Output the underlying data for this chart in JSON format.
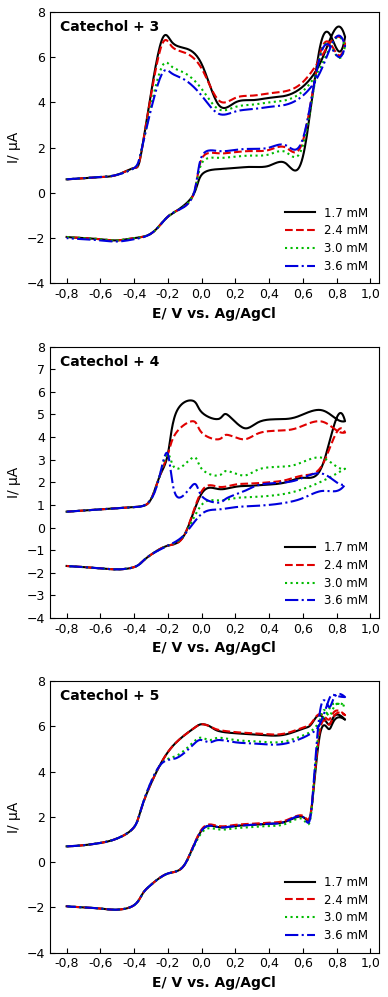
{
  "panels": [
    {
      "title": "Catechol + 3",
      "ylim": [
        -4,
        8
      ],
      "yticks": [
        -4,
        -2,
        0,
        2,
        4,
        6,
        8
      ],
      "curves": {
        "black": {
          "peak1": 6.7,
          "peak2": 7.1,
          "valley": 4.2,
          "ret_peak": 1.0,
          "base": 0.6,
          "trough": -2.1
        },
        "red": {
          "peak1": 6.5,
          "peak2": 6.8,
          "valley": 4.4,
          "ret_peak": 1.7,
          "base": 0.6,
          "trough": -2.1
        },
        "green": {
          "peak1": 5.6,
          "peak2": 6.7,
          "valley": 4.0,
          "ret_peak": 1.5,
          "base": 0.6,
          "trough": -2.1
        },
        "blue": {
          "peak1": 5.3,
          "peak2": 6.7,
          "valley": 3.8,
          "ret_peak": 1.8,
          "base": 0.6,
          "trough": -2.15
        }
      }
    },
    {
      "title": "Catechol + 4",
      "ylim": [
        -4,
        8
      ],
      "yticks": [
        -4,
        -3,
        -2,
        -1,
        0,
        1,
        2,
        3,
        4,
        5,
        6,
        7,
        8
      ],
      "curves": {
        "black": {
          "peak1": 5.6,
          "peak2": 4.9,
          "valley": 1.7,
          "ret_peak": 1.7,
          "base": 0.75,
          "trough": -1.85
        },
        "red": {
          "peak1": 4.7,
          "peak2": 4.4,
          "valley": 4.2,
          "ret_peak": 1.8,
          "base": 0.75,
          "trough": -1.85
        },
        "green": {
          "peak1": 3.1,
          "peak2": 2.8,
          "valley": 2.5,
          "ret_peak": 1.2,
          "base": 0.75,
          "trough": -1.85
        },
        "blue": {
          "peak1": 1.9,
          "peak2": 2.1,
          "valley": 1.7,
          "ret_peak": 0.8,
          "base": 0.75,
          "trough": -1.85
        }
      }
    },
    {
      "title": "Catechol + 5",
      "ylim": [
        -4,
        8
      ],
      "yticks": [
        -4,
        -2,
        0,
        2,
        4,
        6,
        8
      ],
      "curves": {
        "black": {
          "peak1": 6.1,
          "peak2": 6.4,
          "valley": 5.6,
          "ret_peak": 1.5,
          "base": 0.75,
          "trough": -2.1
        },
        "red": {
          "peak1": 6.1,
          "peak2": 6.6,
          "valley": 5.65,
          "ret_peak": 1.55,
          "base": 0.75,
          "trough": -2.1
        },
        "green": {
          "peak1": 5.5,
          "peak2": 7.0,
          "valley": 5.3,
          "ret_peak": 1.4,
          "base": 0.75,
          "trough": -2.1
        },
        "blue": {
          "peak1": 5.4,
          "peak2": 7.4,
          "valley": 5.2,
          "ret_peak": 1.5,
          "base": 0.75,
          "trough": -2.1
        }
      }
    }
  ],
  "colors": {
    "black": "#000000",
    "red": "#e00000",
    "green": "#00bb00",
    "blue": "#0000dd"
  },
  "legend_labels": [
    "1.7 mM",
    "2.4 mM",
    "3.0 mM",
    "3.6 mM"
  ],
  "xlabel": "E/ V vs. Ag/AgCl",
  "ylabel": "I/ μA",
  "xlim": [
    -0.9,
    1.05
  ],
  "xticks": [
    -0.8,
    -0.6,
    -0.4,
    -0.2,
    0.0,
    0.2,
    0.4,
    0.6,
    0.8,
    1.0
  ],
  "xticklabels": [
    "-0,8",
    "-0,6",
    "-0,4",
    "-0,2",
    "0,0",
    "0,2",
    "0,4",
    "0,6",
    "0,8",
    "1,0"
  ]
}
